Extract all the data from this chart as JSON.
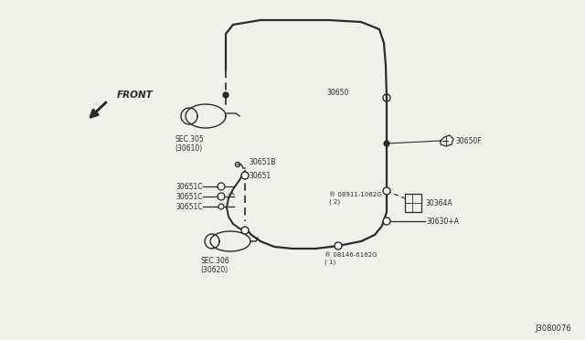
{
  "bg_color": "#f0f0eb",
  "line_color": "#2a2a2a",
  "text_color": "#2a2a2a",
  "diagram_id": "J3080076",
  "labels": {
    "SEC305": "SEC.305\n(30610)",
    "30651B": "30651B",
    "30651": "30651",
    "30651C": "30651C",
    "SEC306": "SEC.306\n(30620)",
    "30650": "30650",
    "30650F": "30650F",
    "08911": "® 08911-1062G\n( 2)",
    "30364A": "30364A",
    "30630A": "30630+A",
    "08146": "® 08146-6162G\n( 1)",
    "FRONT": "FRONT"
  }
}
